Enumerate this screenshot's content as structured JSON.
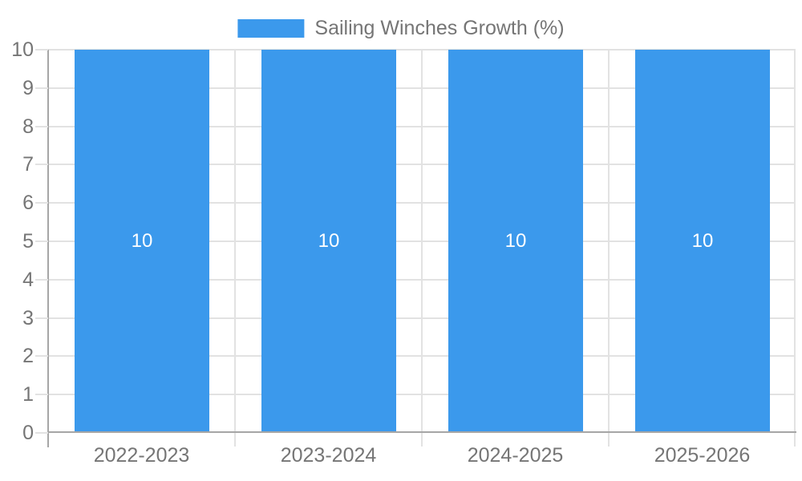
{
  "chart_data": {
    "type": "bar",
    "legend": "Sailing Winches Growth (%)",
    "legend_position": "top-center",
    "categories": [
      "2022-2023",
      "2023-2024",
      "2024-2025",
      "2025-2026"
    ],
    "values": [
      10,
      10,
      10,
      10
    ],
    "bar_labels": [
      "10",
      "10",
      "10",
      "10"
    ],
    "ylim": [
      0,
      10
    ],
    "yticks": [
      0,
      1,
      2,
      3,
      4,
      5,
      6,
      7,
      8,
      9,
      10
    ],
    "grid": true,
    "colors": {
      "bar": "#3B99EC",
      "grid": "#E2E2E2",
      "axis": "#A6A6A6",
      "text": "#757575",
      "bar_label": "#FFFFFF",
      "background": "#FFFFFF"
    }
  }
}
